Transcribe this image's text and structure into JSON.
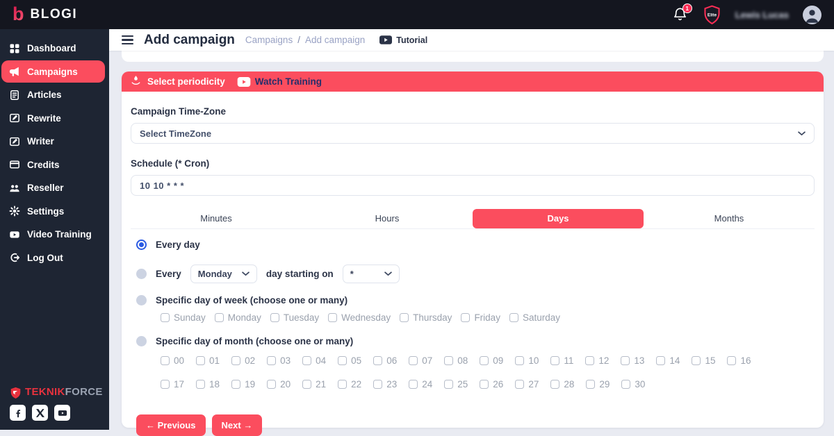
{
  "brand": {
    "logo_letter": "b",
    "name": "BLOGI"
  },
  "topbar": {
    "notification_count": "1",
    "plan_badge": "Elite",
    "username": "Lewis Lucas"
  },
  "sidebar": {
    "items": [
      {
        "label": "Dashboard",
        "icon": "dashboard-icon"
      },
      {
        "label": "Campaigns",
        "icon": "campaigns-icon",
        "active": true
      },
      {
        "label": "Articles",
        "icon": "articles-icon"
      },
      {
        "label": "Rewrite",
        "icon": "rewrite-icon"
      },
      {
        "label": "Writer",
        "icon": "writer-icon"
      },
      {
        "label": "Credits",
        "icon": "credits-icon"
      },
      {
        "label": "Reseller",
        "icon": "reseller-icon"
      },
      {
        "label": "Settings",
        "icon": "settings-icon"
      },
      {
        "label": "Video Training",
        "icon": "video-training-icon"
      },
      {
        "label": "Log Out",
        "icon": "logout-icon"
      }
    ],
    "footer_brand": {
      "primary": "TEKNIK",
      "secondary": "FORCE"
    },
    "social": [
      "facebook-icon",
      "x-icon",
      "youtube-icon"
    ]
  },
  "header": {
    "title": "Add campaign",
    "breadcrumb_parent": "Campaigns",
    "breadcrumb_separator": "/",
    "breadcrumb_current": "Add campaign",
    "tutorial_label": "Tutorial"
  },
  "panel": {
    "title": "Select periodicity",
    "watch_training_label": "Watch Training",
    "timezone_label": "Campaign Time-Zone",
    "timezone_value": "Select TimeZone",
    "schedule_label": "Schedule (* Cron)",
    "schedule_value": "10 10 * * *",
    "tabs": [
      {
        "label": "Minutes"
      },
      {
        "label": "Hours"
      },
      {
        "label": "Days",
        "active": true
      },
      {
        "label": "Months"
      }
    ],
    "options": {
      "every_day_label": "Every day",
      "every_label": "Every",
      "every_weekday_value": "Monday",
      "starting_on_label": "day starting on",
      "starting_value": "*",
      "week_label": "Specific day of week (choose one or many)",
      "weekdays": [
        "Sunday",
        "Monday",
        "Tuesday",
        "Wednesday",
        "Thursday",
        "Friday",
        "Saturday"
      ],
      "month_label": "Specific day of month (choose one or many)",
      "month_days_row1": [
        "00",
        "01",
        "02",
        "03",
        "04",
        "05",
        "06",
        "07",
        "08",
        "09",
        "10",
        "11",
        "12",
        "13",
        "14",
        "15",
        "16"
      ],
      "month_days_row2": [
        "17",
        "18",
        "19",
        "20",
        "21",
        "22",
        "23",
        "24",
        "25",
        "26",
        "27",
        "28",
        "29",
        "30"
      ]
    },
    "previous_label": "← Previous",
    "next_label": "Next →"
  },
  "colors": {
    "accent": "#fb4d5e",
    "topbar_bg": "#14161f",
    "sidebar_bg": "#1e2533",
    "radio_selected": "#2b5be3",
    "content_bg": "#e9ebf2"
  }
}
